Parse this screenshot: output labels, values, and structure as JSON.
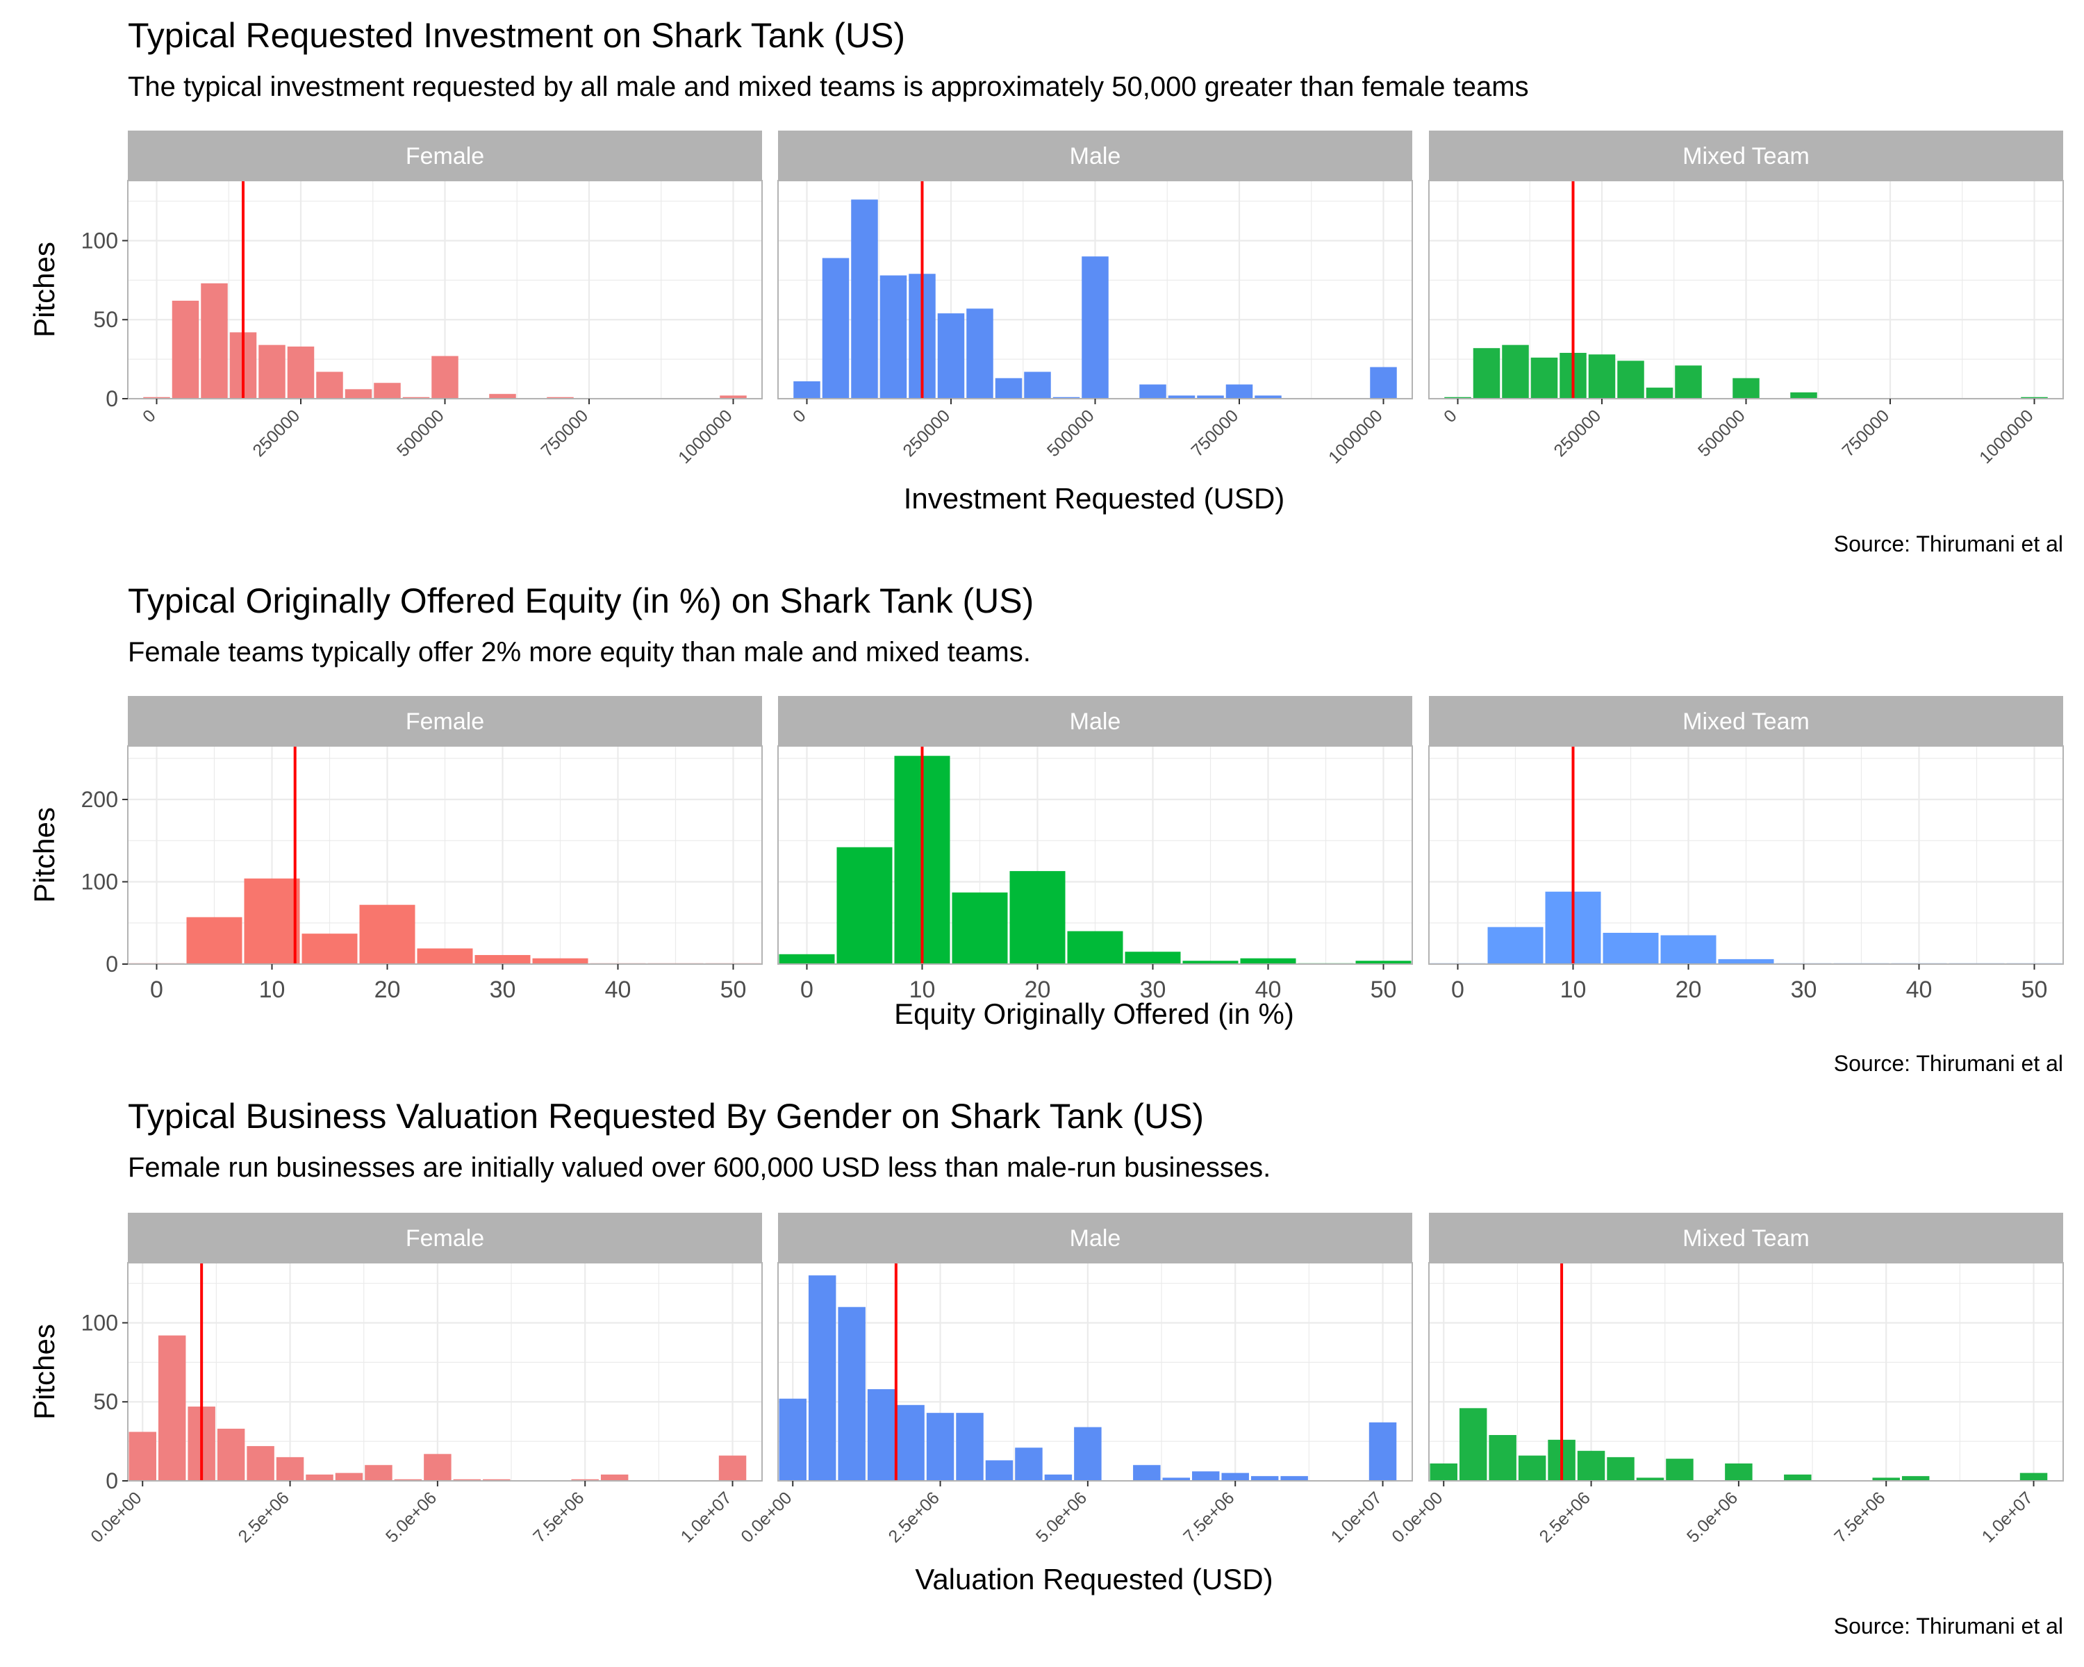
{
  "colors": {
    "female": "#F08080",
    "male": "#5B8DF5",
    "mixed": "#1DB446",
    "red_female": "#F8766D",
    "green": "#00BA38",
    "blue": "#619CFF",
    "typical_line": "#FF0000",
    "strip_bg": "#B3B3B3",
    "grid": "#EBEBEB",
    "panel_border": "#B3B3B3"
  },
  "chart_data": [
    {
      "type": "bar",
      "title": "Typical Requested Investment on Shark Tank (US)",
      "subtitle": "The typical investment requested by all male and mixed teams is approximately 50,000 greater than female teams",
      "xlabel": "Investment Requested (USD)",
      "ylabel": "Pitches",
      "caption": "Source: Thirumani et al",
      "xlim": [
        -50000,
        1050000
      ],
      "ylim": [
        0,
        138
      ],
      "x_ticks": [
        0,
        250000,
        500000,
        750000,
        1000000
      ],
      "x_tick_labels": [
        "0",
        "250000",
        "500000",
        "750000",
        "1000000"
      ],
      "y_ticks": [
        0,
        50,
        100
      ],
      "y_tick_labels": [
        "0",
        "50",
        "100"
      ],
      "x_tick_angle": 45,
      "bin_width": 50000,
      "grid": true,
      "panels": [
        {
          "label": "Female",
          "color_key": "female",
          "typical": 150000,
          "bins": [
            [
              0,
              1
            ],
            [
              50000,
              62
            ],
            [
              100000,
              73
            ],
            [
              150000,
              42
            ],
            [
              200000,
              34
            ],
            [
              250000,
              33
            ],
            [
              300000,
              17
            ],
            [
              350000,
              6
            ],
            [
              400000,
              10
            ],
            [
              450000,
              1
            ],
            [
              500000,
              27
            ],
            [
              600000,
              3
            ],
            [
              700000,
              1
            ],
            [
              1000000,
              2
            ]
          ]
        },
        {
          "label": "Male",
          "color_key": "male",
          "typical": 200000,
          "bins": [
            [
              0,
              11
            ],
            [
              50000,
              89
            ],
            [
              100000,
              126
            ],
            [
              150000,
              78
            ],
            [
              200000,
              79
            ],
            [
              250000,
              54
            ],
            [
              300000,
              57
            ],
            [
              350000,
              13
            ],
            [
              400000,
              17
            ],
            [
              450000,
              1
            ],
            [
              500000,
              90
            ],
            [
              600000,
              9
            ],
            [
              650000,
              2
            ],
            [
              700000,
              2
            ],
            [
              750000,
              9
            ],
            [
              800000,
              2
            ],
            [
              1000000,
              20
            ]
          ]
        },
        {
          "label": "Mixed Team",
          "color_key": "mixed",
          "typical": 200000,
          "bins": [
            [
              0,
              1
            ],
            [
              50000,
              32
            ],
            [
              100000,
              34
            ],
            [
              150000,
              26
            ],
            [
              200000,
              29
            ],
            [
              250000,
              28
            ],
            [
              300000,
              24
            ],
            [
              350000,
              7
            ],
            [
              400000,
              21
            ],
            [
              500000,
              13
            ],
            [
              600000,
              4
            ],
            [
              1000000,
              1
            ]
          ]
        }
      ]
    },
    {
      "type": "bar",
      "title": "Typical Originally Offered Equity (in %) on Shark Tank (US)",
      "subtitle": "Female teams typically offer 2% more equity than male and mixed teams.",
      "xlabel": "Equity Originally Offered (in %)",
      "ylabel": "Pitches",
      "caption": "Source: Thirumani et al",
      "xlim": [
        -2.5,
        52.5
      ],
      "ylim": [
        0,
        265
      ],
      "x_ticks": [
        0,
        10,
        20,
        30,
        40,
        50
      ],
      "x_tick_labels": [
        "0",
        "10",
        "20",
        "30",
        "40",
        "50"
      ],
      "y_ticks": [
        0,
        100,
        200
      ],
      "y_tick_labels": [
        "0",
        "100",
        "200"
      ],
      "x_tick_angle": 0,
      "bin_width": 5,
      "grid": true,
      "panels": [
        {
          "label": "Female",
          "color_key": "red_female",
          "typical": 12,
          "bins": [
            [
              0,
              1
            ],
            [
              5,
              57
            ],
            [
              10,
              104
            ],
            [
              15,
              37
            ],
            [
              20,
              72
            ],
            [
              25,
              19
            ],
            [
              30,
              11
            ],
            [
              35,
              7
            ],
            [
              40,
              1
            ],
            [
              45,
              1
            ],
            [
              50,
              1
            ]
          ]
        },
        {
          "label": "Male",
          "color_key": "green",
          "typical": 10,
          "bins": [
            [
              0,
              12
            ],
            [
              5,
              142
            ],
            [
              10,
              253
            ],
            [
              15,
              87
            ],
            [
              20,
              113
            ],
            [
              25,
              40
            ],
            [
              30,
              15
            ],
            [
              35,
              4
            ],
            [
              40,
              7
            ],
            [
              45,
              1
            ],
            [
              50,
              4
            ]
          ]
        },
        {
          "label": "Mixed Team",
          "color_key": "blue",
          "typical": 10,
          "bins": [
            [
              0,
              1
            ],
            [
              5,
              45
            ],
            [
              10,
              88
            ],
            [
              15,
              38
            ],
            [
              20,
              35
            ],
            [
              25,
              6
            ],
            [
              30,
              1
            ],
            [
              35,
              1
            ],
            [
              40,
              1
            ],
            [
              45,
              1
            ],
            [
              50,
              1
            ]
          ]
        }
      ]
    },
    {
      "type": "bar",
      "title": "Typical Business Valuation Requested By Gender on Shark Tank (US)",
      "subtitle": "Female run businesses are initially valued over 600,000 USD less than male-run businesses.",
      "xlabel": "Valuation Requested (USD)",
      "ylabel": "Pitches",
      "caption": "Source: Thirumani et al",
      "xlim": [
        -250000,
        10500000
      ],
      "ylim": [
        0,
        138
      ],
      "x_ticks": [
        0,
        2500000,
        5000000,
        7500000,
        10000000
      ],
      "x_tick_labels": [
        "0.0e+00",
        "2.5e+06",
        "5.0e+06",
        "7.5e+06",
        "1.0e+07"
      ],
      "y_ticks": [
        0,
        50,
        100
      ],
      "y_tick_labels": [
        "0",
        "50",
        "100"
      ],
      "x_tick_angle": 45,
      "bin_width": 500000,
      "grid": true,
      "panels": [
        {
          "label": "Female",
          "color_key": "female",
          "typical": 1000000,
          "bins": [
            [
              0,
              31
            ],
            [
              500000,
              92
            ],
            [
              1000000,
              47
            ],
            [
              1500000,
              33
            ],
            [
              2000000,
              22
            ],
            [
              2500000,
              15
            ],
            [
              3000000,
              4
            ],
            [
              3500000,
              5
            ],
            [
              4000000,
              10
            ],
            [
              4500000,
              1
            ],
            [
              5000000,
              17
            ],
            [
              5500000,
              1
            ],
            [
              6000000,
              1
            ],
            [
              7500000,
              1
            ],
            [
              8000000,
              4
            ],
            [
              10000000,
              16
            ]
          ]
        },
        {
          "label": "Male",
          "color_key": "male",
          "typical": 1750000,
          "bins": [
            [
              0,
              52
            ],
            [
              500000,
              130
            ],
            [
              1000000,
              110
            ],
            [
              1500000,
              58
            ],
            [
              2000000,
              48
            ],
            [
              2500000,
              43
            ],
            [
              3000000,
              43
            ],
            [
              3500000,
              13
            ],
            [
              4000000,
              21
            ],
            [
              4500000,
              4
            ],
            [
              5000000,
              34
            ],
            [
              6000000,
              10
            ],
            [
              6500000,
              2
            ],
            [
              7000000,
              6
            ],
            [
              7500000,
              5
            ],
            [
              8000000,
              3
            ],
            [
              8500000,
              3
            ],
            [
              10000000,
              37
            ]
          ]
        },
        {
          "label": "Mixed Team",
          "color_key": "mixed",
          "typical": 2000000,
          "bins": [
            [
              0,
              11
            ],
            [
              500000,
              46
            ],
            [
              1000000,
              29
            ],
            [
              1500000,
              16
            ],
            [
              2000000,
              26
            ],
            [
              2500000,
              19
            ],
            [
              3000000,
              15
            ],
            [
              3500000,
              2
            ],
            [
              4000000,
              14
            ],
            [
              5000000,
              11
            ],
            [
              6000000,
              4
            ],
            [
              7500000,
              2
            ],
            [
              8000000,
              3
            ],
            [
              10000000,
              5
            ]
          ]
        }
      ]
    }
  ]
}
